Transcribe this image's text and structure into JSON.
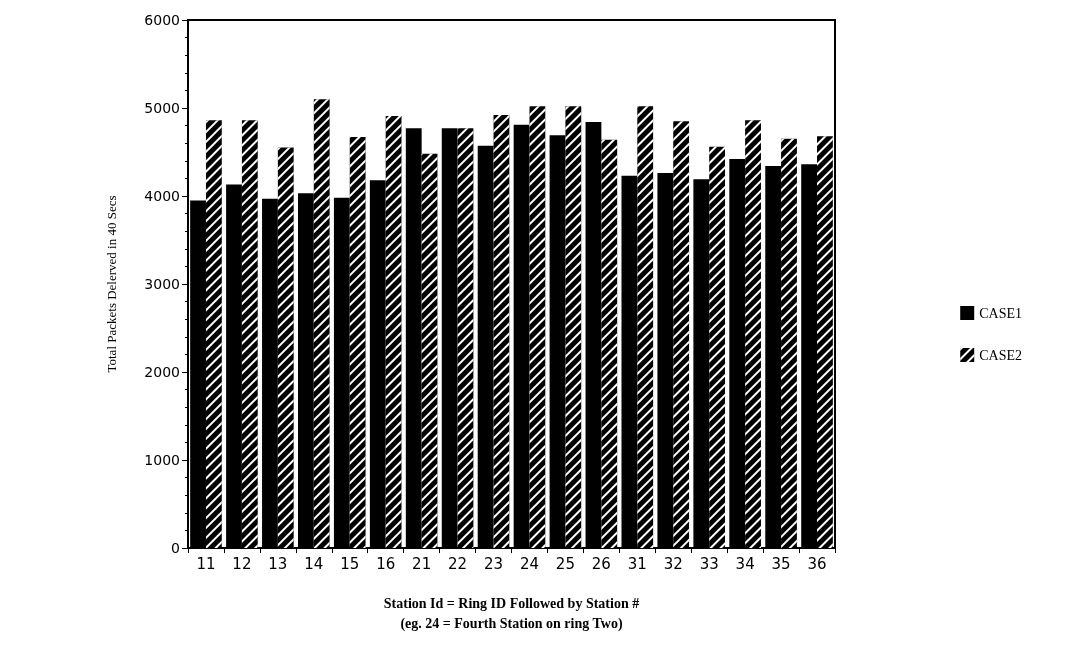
{
  "chart_data": {
    "type": "bar",
    "xlabel": "Station Id = Ring ID Followed by Station #\n(eg. 24 = Fourth Station on ring Two)",
    "ylabel": "Total Packets Delerved in 40 Secs",
    "categories": [
      "11",
      "12",
      "13",
      "14",
      "15",
      "16",
      "21",
      "22",
      "23",
      "24",
      "25",
      "26",
      "31",
      "32",
      "33",
      "34",
      "35",
      "36"
    ],
    "series": [
      {
        "name": "CASE1",
        "color": "#000000",
        "values": [
          3950,
          4130,
          3970,
          4030,
          3980,
          4180,
          4770,
          4770,
          4570,
          4810,
          4690,
          4840,
          4230,
          4260,
          4190,
          4420,
          4340,
          4360
        ]
      },
      {
        "name": "CASE2",
        "color": "#000000",
        "values": [
          4860,
          4860,
          4550,
          5100,
          4670,
          4910,
          4480,
          4770,
          4920,
          5020,
          5020,
          4640,
          5020,
          4850,
          4560,
          4860,
          4650,
          4680
        ]
      }
    ],
    "ylim": [
      0,
      6000
    ],
    "yticks": [
      0,
      1000,
      2000,
      3000,
      4000,
      5000,
      6000
    ],
    "grid": false,
    "legend": "right"
  }
}
